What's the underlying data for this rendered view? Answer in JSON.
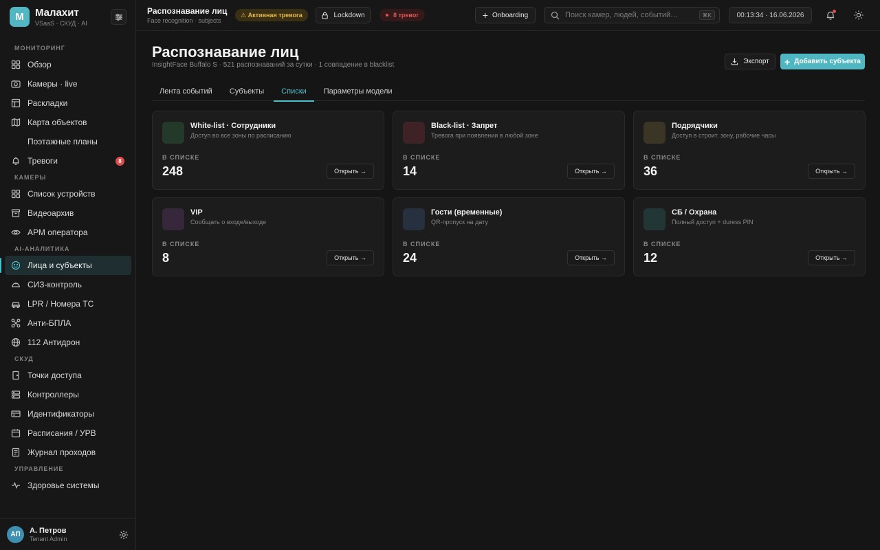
{
  "brand": {
    "logo_letter": "M",
    "name": "Малахит",
    "sub": "VSaaS · СКУД · AI"
  },
  "sidebar": {
    "sections": [
      {
        "label": "МОНИТОРИНГ",
        "items": [
          {
            "label": "Обзор",
            "icon": "grid-icon"
          },
          {
            "label": "Камеры · live",
            "icon": "camera-icon"
          },
          {
            "label": "Раскладки",
            "icon": "layout-icon"
          },
          {
            "label": "Карта объектов",
            "icon": "map-icon"
          },
          {
            "label": "Поэтажные планы",
            "icon": ""
          },
          {
            "label": "Тревоги",
            "icon": "bell-icon",
            "badge": "8"
          }
        ]
      },
      {
        "label": "КАМЕРЫ",
        "items": [
          {
            "label": "Список устройств",
            "icon": "grid-icon"
          },
          {
            "label": "Видеоархив",
            "icon": "archive-icon"
          },
          {
            "label": "АРМ оператора",
            "icon": "eye-icon"
          }
        ]
      },
      {
        "label": "AI-АНАЛИТИКА",
        "items": [
          {
            "label": "Лица и субъекты",
            "icon": "face-icon"
          },
          {
            "label": "СИЗ-контроль",
            "icon": "helmet-icon"
          },
          {
            "label": "LPR / Номера ТС",
            "icon": "car-icon"
          },
          {
            "label": "Анти-БПЛА",
            "icon": "drone-icon"
          },
          {
            "label": "112 Антидрон",
            "icon": "globe-icon"
          }
        ]
      },
      {
        "label": "СКУД",
        "items": [
          {
            "label": "Точки доступа",
            "icon": "door-icon"
          },
          {
            "label": "Контроллеры",
            "icon": "controller-icon"
          },
          {
            "label": "Идентификаторы",
            "icon": "card-icon"
          },
          {
            "label": "Расписания / УРВ",
            "icon": "calendar-icon"
          },
          {
            "label": "Журнал проходов",
            "icon": "journal-icon"
          }
        ]
      },
      {
        "label": "УПРАВЛЕНИЕ",
        "items": [
          {
            "label": "Здоровье системы",
            "icon": "pulse-icon"
          }
        ]
      }
    ]
  },
  "user": {
    "initials": "АП",
    "name": "А. Петров",
    "role": "Tenant Admin"
  },
  "topbar": {
    "title": "Распознавание лиц",
    "subtitle": "Face recognition · subjects",
    "alert_pill": "⚠ Активная тревога",
    "lockdown_label": "Lockdown",
    "alerts_count": "8 тревог",
    "onboarding_label": "Onboarding",
    "search_placeholder": "Поиск камер, людей, событий…",
    "search_shortcut": "⌘K",
    "clock": "00:13:34 · 16.06.2026"
  },
  "page": {
    "title": "Распознавание лиц",
    "subtitle": "InsightFace Buffalo S · 521 распознаваний за сутки · 1 совпадение в blacklist",
    "export_label": "Экспорт",
    "add_label": "Добавить субъекта",
    "tabs": [
      {
        "label": "Лента событий",
        "active": false
      },
      {
        "label": "Субъекты",
        "active": false
      },
      {
        "label": "Списки",
        "active": true
      },
      {
        "label": "Параметры модели",
        "active": false
      }
    ]
  },
  "lists": [
    {
      "title": "White-list · Сотрудники",
      "desc": "Доступ во все зоны по расписанию",
      "label": "В СПИСКЕ",
      "count": "248",
      "open": "Открыть →",
      "color": "#233a2a"
    },
    {
      "title": "Black-list · Запрет",
      "desc": "Тревога при появлении в любой зоне",
      "label": "В СПИСКЕ",
      "count": "14",
      "open": "Открыть →",
      "color": "#3f2225"
    },
    {
      "title": "Подрядчики",
      "desc": "Доступ в строит. зону, рабочие часы",
      "label": "В СПИСКЕ",
      "count": "36",
      "open": "Открыть →",
      "color": "#3a3524"
    },
    {
      "title": "VIP",
      "desc": "Сообщать о входе/выходе",
      "label": "В СПИСКЕ",
      "count": "8",
      "open": "Открыть →",
      "color": "#36283a"
    },
    {
      "title": "Гости (временные)",
      "desc": "QR-пропуск на дату",
      "label": "В СПИСКЕ",
      "count": "24",
      "open": "Открыть →",
      "color": "#26303e"
    },
    {
      "title": "СБ / Охрана",
      "desc": "Полный доступ + duress PIN",
      "label": "В СПИСКЕ",
      "count": "12",
      "open": "Открыть →",
      "color": "#233636"
    }
  ]
}
